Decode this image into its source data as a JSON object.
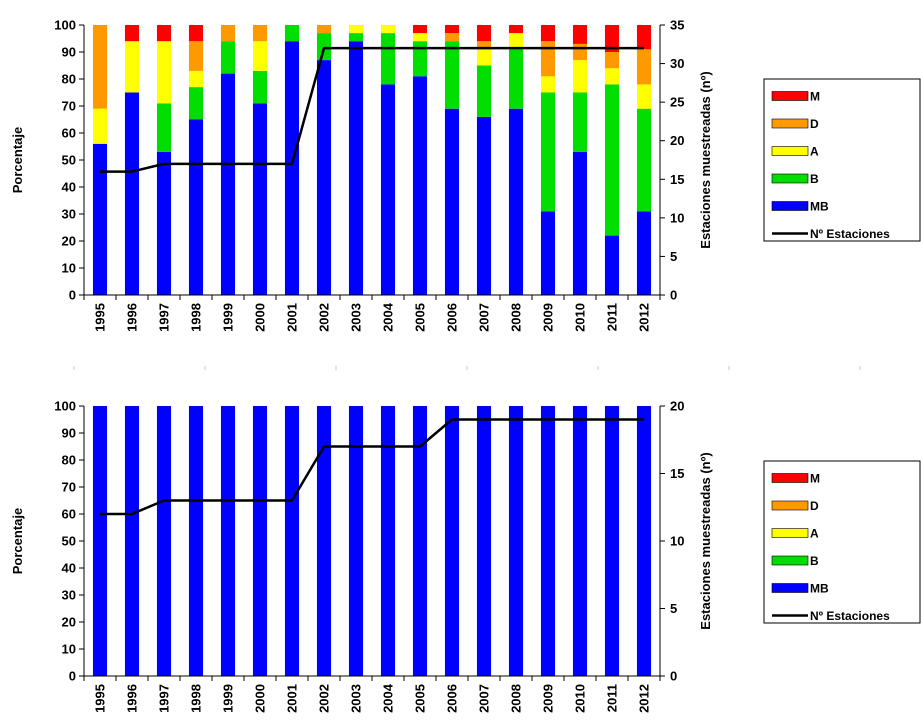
{
  "colors": {
    "MB": "#0000ff",
    "B": "#00dd00",
    "A": "#ffff00",
    "D": "#ff9900",
    "M": "#ff0000",
    "line": "#000000"
  },
  "chart_data": [
    {
      "type": "bar",
      "stacked": true,
      "title": "",
      "ylabel": "Porcentaje",
      "y2label": "Estaciones muestreadas (nº)",
      "ylim": [
        0,
        100
      ],
      "y2lim": [
        0,
        35
      ],
      "yticks": [
        0,
        10,
        20,
        30,
        40,
        50,
        60,
        70,
        80,
        90,
        100
      ],
      "y2ticks": [
        0,
        5,
        10,
        15,
        20,
        25,
        30,
        35
      ],
      "categories": [
        "1995",
        "1996",
        "1997",
        "1998",
        "1999",
        "2000",
        "2001",
        "2002",
        "2003",
        "2004",
        "2005",
        "2006",
        "2007",
        "2008",
        "2009",
        "2010",
        "2011",
        "2012"
      ],
      "series": [
        {
          "name": "MB",
          "values": [
            56,
            75,
            53,
            65,
            82,
            71,
            94,
            87,
            94,
            78,
            81,
            69,
            66,
            69,
            31,
            53,
            22,
            31
          ]
        },
        {
          "name": "B",
          "values": [
            0,
            0,
            18,
            12,
            12,
            12,
            6,
            10,
            3,
            19,
            13,
            25,
            19,
            22,
            44,
            22,
            56,
            38
          ]
        },
        {
          "name": "A",
          "values": [
            13,
            19,
            23,
            6,
            0,
            11,
            0,
            0,
            3,
            3,
            3,
            0,
            6,
            6,
            6,
            12,
            6,
            9
          ]
        },
        {
          "name": "D",
          "values": [
            31,
            0,
            0,
            11,
            6,
            6,
            0,
            3,
            0,
            0,
            0,
            3,
            3,
            0,
            13,
            6,
            6,
            13
          ]
        },
        {
          "name": "M",
          "values": [
            0,
            6,
            6,
            6,
            0,
            0,
            0,
            0,
            0,
            0,
            3,
            3,
            6,
            3,
            6,
            7,
            10,
            9
          ]
        }
      ],
      "line": {
        "name": "Nº Estaciones",
        "values": [
          16,
          16,
          17,
          17,
          17,
          17,
          17,
          32,
          32,
          32,
          32,
          32,
          32,
          32,
          32,
          32,
          32,
          32
        ]
      },
      "legend": [
        "M",
        "D",
        "A",
        "B",
        "MB",
        "Nº Estaciones"
      ],
      "legend_placement": "right",
      "grid": false
    },
    {
      "type": "bar",
      "stacked": true,
      "title": "",
      "ylabel": "Porcentaje",
      "y2label": "Estaciones muestreadas (nº)",
      "ylim": [
        0,
        100
      ],
      "y2lim": [
        0,
        20
      ],
      "yticks": [
        0,
        10,
        20,
        30,
        40,
        50,
        60,
        70,
        80,
        90,
        100
      ],
      "y2ticks": [
        0,
        5,
        10,
        15,
        20
      ],
      "categories": [
        "1995",
        "1996",
        "1997",
        "1998",
        "1999",
        "2000",
        "2001",
        "2002",
        "2003",
        "2004",
        "2005",
        "2006",
        "2007",
        "2008",
        "2009",
        "2010",
        "2011",
        "2012"
      ],
      "series": [
        {
          "name": "MB",
          "values": [
            100,
            100,
            100,
            100,
            100,
            100,
            100,
            100,
            100,
            100,
            100,
            100,
            100,
            100,
            100,
            100,
            100,
            100
          ]
        },
        {
          "name": "B",
          "values": [
            0,
            0,
            0,
            0,
            0,
            0,
            0,
            0,
            0,
            0,
            0,
            0,
            0,
            0,
            0,
            0,
            0,
            0
          ]
        },
        {
          "name": "A",
          "values": [
            0,
            0,
            0,
            0,
            0,
            0,
            0,
            0,
            0,
            0,
            0,
            0,
            0,
            0,
            0,
            0,
            0,
            0
          ]
        },
        {
          "name": "D",
          "values": [
            0,
            0,
            0,
            0,
            0,
            0,
            0,
            0,
            0,
            0,
            0,
            0,
            0,
            0,
            0,
            0,
            0,
            0
          ]
        },
        {
          "name": "M",
          "values": [
            0,
            0,
            0,
            0,
            0,
            0,
            0,
            0,
            0,
            0,
            0,
            0,
            0,
            0,
            0,
            0,
            0,
            0
          ]
        }
      ],
      "line": {
        "name": "Nº Estaciones",
        "values": [
          12,
          12,
          13,
          13,
          13,
          13,
          13,
          17,
          17,
          17,
          17,
          19,
          19,
          19,
          19,
          19,
          19,
          19
        ]
      },
      "legend": [
        "M",
        "D",
        "A",
        "B",
        "MB",
        "Nº Estaciones"
      ],
      "legend_placement": "right",
      "grid": false
    }
  ]
}
